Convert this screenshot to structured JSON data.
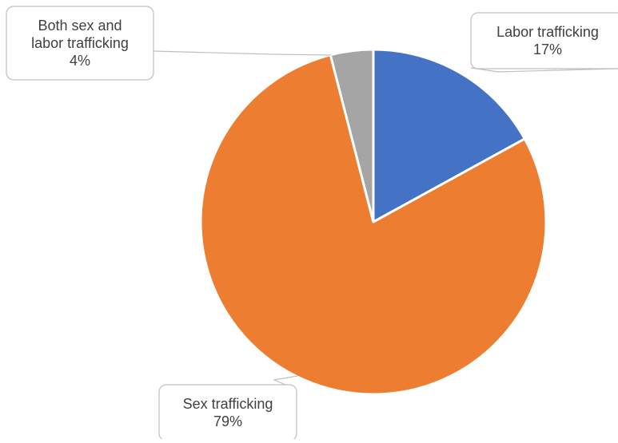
{
  "chart_data": {
    "type": "pie",
    "slices": [
      {
        "label": "Labor trafficking",
        "value": 17,
        "value_label": "17%",
        "color": "#4472c4"
      },
      {
        "label": "Sex trafficking",
        "value": 79,
        "value_label": "79%",
        "color": "#ed7d31"
      },
      {
        "label": "Both sex and labor trafficking",
        "label_lines": [
          "Both sex and",
          "labor trafficking"
        ],
        "value": 4,
        "value_label": "4%",
        "color": "#a5a5a5"
      }
    ],
    "title": "",
    "legend": "none",
    "data_labels": "callouts"
  }
}
